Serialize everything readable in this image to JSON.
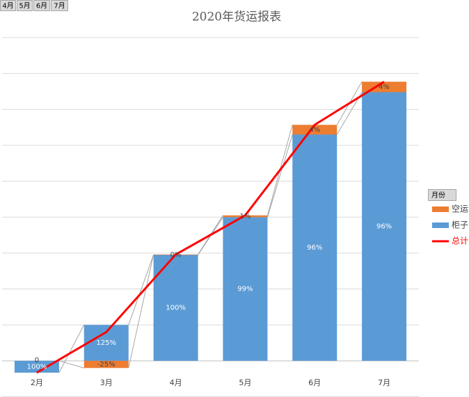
{
  "filter_buttons": [
    "4月",
    "5月",
    "6月",
    "7月"
  ],
  "legend_title": "月份",
  "chart_data": {
    "type": "bar",
    "title": "2020年货运报表",
    "stacked": true,
    "categories": [
      "2月",
      "3月",
      "4月",
      "5月",
      "6月",
      "7月"
    ],
    "series": [
      {
        "name": "空运",
        "color": "#ed7d31",
        "values": [
          0,
          -0.2,
          0.01,
          0.05,
          0.27,
          0.29
        ],
        "data_labels": [
          "0",
          "-25%",
          "0%",
          "1%",
          "4%",
          "4%"
        ]
      },
      {
        "name": "柜子",
        "color": "#5b9bd5",
        "values": [
          -0.33,
          1.0,
          2.95,
          4.0,
          6.3,
          7.48
        ],
        "data_labels": [
          "100%",
          "125%",
          "100%",
          "99%",
          "96%",
          "96%"
        ]
      },
      {
        "name": "总计",
        "type": "line",
        "color": "#ff0000",
        "values": [
          -0.33,
          0.8,
          2.96,
          4.05,
          6.57,
          7.77
        ]
      }
    ],
    "ylim": [
      -1,
      9
    ],
    "yticks": [
      -1,
      0,
      1,
      2,
      3,
      4,
      5,
      6,
      7,
      8,
      9
    ],
    "grid": true,
    "legend": "right"
  }
}
